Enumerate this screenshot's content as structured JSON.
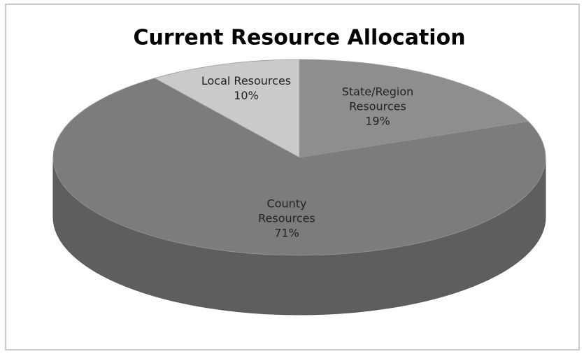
{
  "chart_data": {
    "type": "pie",
    "title": "Current Resource Allocation",
    "categories": [
      "State/Region Resources",
      "County Resources",
      "Local Resources"
    ],
    "values": [
      19,
      71,
      10
    ],
    "value_labels": [
      "19%",
      "71%",
      "10%"
    ],
    "colors": [
      "#8e8e8e",
      "#7c7c7c",
      "#cacaca"
    ]
  }
}
